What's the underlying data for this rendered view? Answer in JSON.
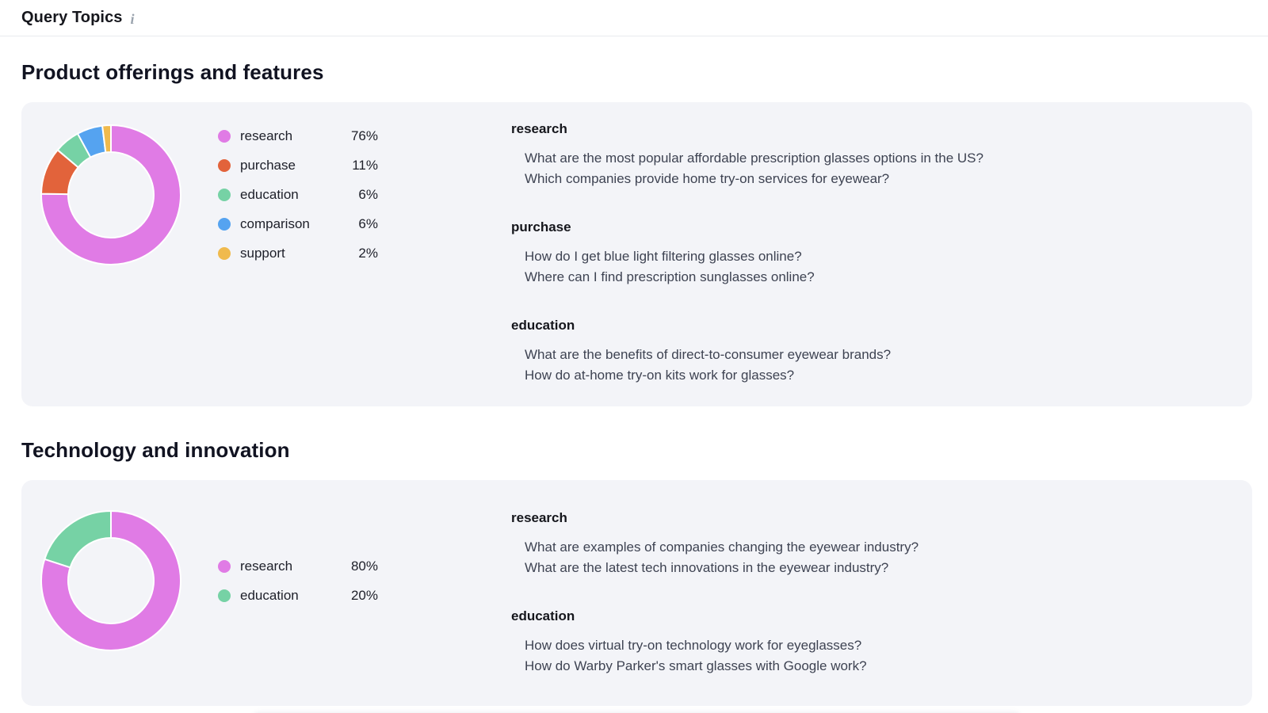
{
  "header": {
    "title": "Query Topics",
    "info_icon": "i"
  },
  "colors": {
    "research": "#E07BE5",
    "purchase": "#E2633B",
    "education": "#76D2A5",
    "comparison": "#55A3F0",
    "support": "#F0BA4D"
  },
  "sections": [
    {
      "title": "Product offerings and features",
      "topics": [
        {
          "label": "research",
          "value": "76%"
        },
        {
          "label": "purchase",
          "value": "11%"
        },
        {
          "label": "education",
          "value": "6%"
        },
        {
          "label": "comparison",
          "value": "6%"
        },
        {
          "label": "support",
          "value": "2%"
        }
      ],
      "groups": [
        {
          "name": "research",
          "queries": [
            "What are the most popular affordable prescription glasses options in the US?",
            "Which companies provide home try-on services for eyewear?"
          ]
        },
        {
          "name": "purchase",
          "queries": [
            "How do I get blue light filtering glasses online?",
            "Where can I find prescription sunglasses online?"
          ]
        },
        {
          "name": "education",
          "queries": [
            "What are the benefits of direct-to-consumer eyewear brands?",
            "How do at-home try-on kits work for glasses?"
          ]
        }
      ]
    },
    {
      "title": "Technology and innovation",
      "topics": [
        {
          "label": "research",
          "value": "80%"
        },
        {
          "label": "education",
          "value": "20%"
        }
      ],
      "groups": [
        {
          "name": "research",
          "queries": [
            "What are examples of companies changing the eyewear industry?",
            "What are the latest tech innovations in the eyewear industry?"
          ]
        },
        {
          "name": "education",
          "queries": [
            "How does virtual try-on technology work for eyeglasses?",
            "How do Warby Parker's smart glasses with Google work?"
          ]
        }
      ]
    }
  ],
  "chart_data": [
    {
      "type": "pie",
      "subtype": "donut",
      "title": "Product offerings and features",
      "categories": [
        "research",
        "purchase",
        "education",
        "comparison",
        "support"
      ],
      "values": [
        76,
        11,
        6,
        6,
        2
      ],
      "unit": "%",
      "colors": [
        "#E07BE5",
        "#E2633B",
        "#76D2A5",
        "#55A3F0",
        "#F0BA4D"
      ],
      "start_angle_deg": 0,
      "direction": "clockwise",
      "legend_position": "right"
    },
    {
      "type": "pie",
      "subtype": "donut",
      "title": "Technology and innovation",
      "categories": [
        "research",
        "education"
      ],
      "values": [
        80,
        20
      ],
      "unit": "%",
      "colors": [
        "#E07BE5",
        "#76D2A5"
      ],
      "start_angle_deg": 0,
      "direction": "clockwise",
      "legend_position": "right"
    }
  ]
}
